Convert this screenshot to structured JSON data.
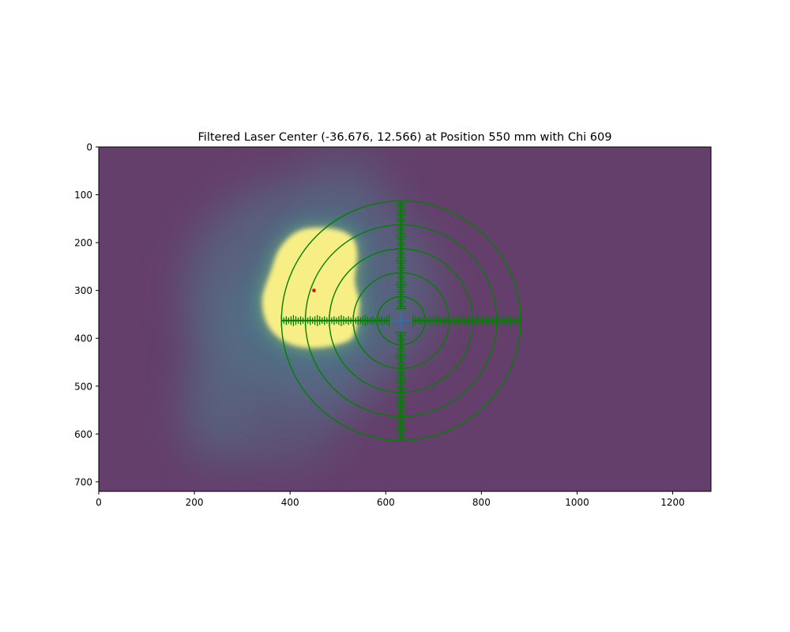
{
  "chart_data": {
    "type": "heatmap",
    "title": "Filtered Laser Center (-36.676, 12.566) at Position 550 mm with Chi 609",
    "xlabel": "",
    "ylabel": "",
    "xlim": [
      0,
      1280
    ],
    "ylim": [
      720,
      0
    ],
    "x_ticks": [
      "0",
      "200",
      "400",
      "600",
      "800",
      "1000",
      "1200"
    ],
    "y_ticks": [
      "0",
      "100",
      "200",
      "300",
      "400",
      "500",
      "600",
      "700"
    ],
    "colormap": "viridis",
    "background_color": "#643f6b",
    "hotspot_color": "#f8ee86",
    "halo_color": "#2f7f88",
    "overlay_color": "#008000",
    "marker_color": "#1f77b4",
    "laser_spot": {
      "x": 450,
      "y": 300,
      "color": "#ff0000"
    },
    "target": {
      "center": {
        "x": 632,
        "y": 363
      },
      "ring_radii": [
        50,
        100,
        150,
        200,
        250
      ],
      "crosshair_half_length": 250
    },
    "bright_region": {
      "outline": [
        [
          420,
          175
        ],
        [
          480,
          170
        ],
        [
          525,
          185
        ],
        [
          540,
          220
        ],
        [
          535,
          280
        ],
        [
          545,
          330
        ],
        [
          535,
          390
        ],
        [
          510,
          410
        ],
        [
          450,
          420
        ],
        [
          395,
          410
        ],
        [
          355,
          375
        ],
        [
          342,
          320
        ],
        [
          360,
          260
        ],
        [
          380,
          210
        ]
      ]
    }
  }
}
